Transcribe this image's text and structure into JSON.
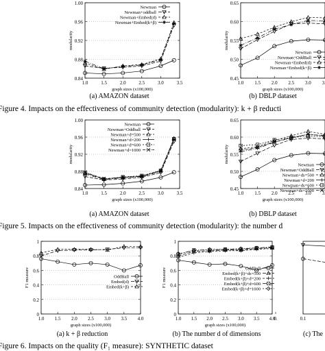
{
  "figure4": {
    "caption": "Figure 4.   Impacts on the effectiveness of community detection (modularity): k + β reducti",
    "subcaption_a": "(a)  AMAZON dataset",
    "subcaption_b": "(b)  DBLP dataset"
  },
  "figure5": {
    "caption": "Figure 5.   Impacts on the effectiveness of community detection (modularity): the number d",
    "subcaption_a": "(a)  AMAZON dataset",
    "subcaption_b": "(b)  DBLP dataset"
  },
  "figure6": {
    "caption": "Figure 6.   Impacts on the quality (F₁ measure): SYNTHETIC dataset",
    "subcaption_a": "(a)   k + β reduction",
    "subcaption_b": "(b)  The number d of dimensions",
    "subcaption_c": "(c)  The"
  },
  "chart_data": [
    {
      "id": "fig4a",
      "type": "line",
      "xlabel": "graph sizes (x100,000)",
      "ylabel": "modularity",
      "xlim": [
        1.0,
        3.5
      ],
      "ylim": [
        0.84,
        1.0
      ],
      "xticks": [
        "1.0",
        "1.5",
        "2.0",
        "2.5",
        "3.0",
        "3.5"
      ],
      "yticks": [
        "0.84",
        "0.88",
        "0.92",
        "0.96",
        "1.00"
      ],
      "legend_position": "top-right",
      "series": [
        {
          "name": "Newman",
          "marker": "circle",
          "x": [
            1.0,
            1.5,
            2.0,
            2.5,
            3.0,
            3.35
          ],
          "values": [
            0.851,
            0.849,
            0.851,
            0.855,
            0.866,
            0.878
          ]
        },
        {
          "name": "Newman+oddball",
          "marker": "triangle-down",
          "x": [
            1.0,
            1.5,
            2.0,
            2.5,
            3.0,
            3.35
          ],
          "values": [
            0.866,
            0.861,
            0.863,
            0.866,
            0.876,
            0.952
          ]
        },
        {
          "name": "Newman+Embed(d)",
          "marker": "triangle",
          "x": [
            1.0,
            1.5,
            2.0,
            2.5,
            3.0,
            3.35
          ],
          "values": [
            0.872,
            0.859,
            0.866,
            0.869,
            0.881,
            0.958
          ]
        },
        {
          "name": "Newman+Embed(k+β)",
          "marker": "star",
          "x": [
            1.0,
            1.5,
            2.0,
            2.5,
            3.0,
            3.35
          ],
          "values": [
            0.876,
            0.86,
            0.865,
            0.868,
            0.879,
            0.956
          ]
        }
      ]
    },
    {
      "id": "fig4b",
      "type": "line",
      "xlabel": "graph sizes (x100,000)",
      "ylabel": "modularity",
      "xlim": [
        1.0,
        3.5
      ],
      "ylim": [
        0.45,
        0.65
      ],
      "xticks": [
        "1.0",
        "1.5",
        "2.0",
        "2.5",
        "3.0",
        "3.5"
      ],
      "yticks": [
        "0.45",
        "0.50",
        "0.55",
        "0.60",
        "0.65"
      ],
      "legend_position": "bottom-right",
      "series": [
        {
          "name": "Newman",
          "marker": "circle",
          "x": [
            1.0,
            1.5,
            2.0,
            2.5,
            3.0,
            3.5
          ],
          "values": [
            0.484,
            0.504,
            0.535,
            0.548,
            0.552,
            0.551
          ]
        },
        {
          "name": "Newman+OddBall",
          "marker": "triangle-down",
          "x": [
            1.0,
            1.5,
            2.0,
            2.5,
            3.0,
            3.5
          ],
          "values": [
            0.528,
            0.552,
            0.574,
            0.594,
            0.596,
            0.594
          ]
        },
        {
          "name": "Newman+Embed(d)",
          "marker": "triangle",
          "x": [
            1.0,
            1.5,
            2.0,
            2.5,
            3.0,
            3.5
          ],
          "values": [
            0.555,
            0.567,
            0.585,
            0.6,
            0.611,
            0.61
          ]
        },
        {
          "name": "Newman+Embed(k+β)",
          "marker": "star",
          "x": [
            1.0,
            1.5,
            2.0,
            2.5,
            3.0,
            3.5
          ],
          "values": [
            0.537,
            0.557,
            0.58,
            0.592,
            0.603,
            0.602
          ]
        }
      ]
    },
    {
      "id": "fig5a",
      "type": "line",
      "xlabel": "graph sizes (x100,000)",
      "ylabel": "modularity",
      "xlim": [
        1.0,
        3.5
      ],
      "ylim": [
        0.84,
        1.0
      ],
      "xticks": [
        "1.0",
        "1.5",
        "2.0",
        "2.5",
        "3.0",
        "3.5"
      ],
      "yticks": [
        "0.84",
        "0.88",
        "0.92",
        "0.96",
        "1.00"
      ],
      "legend_position": "top-left",
      "series": [
        {
          "name": "Newman",
          "marker": "circle",
          "x": [
            1.0,
            1.5,
            2.0,
            2.5,
            3.0,
            3.35
          ],
          "values": [
            0.848,
            0.849,
            0.852,
            0.857,
            0.866,
            0.878
          ]
        },
        {
          "name": "Newman+Oddball",
          "marker": "triangle-down",
          "x": [
            1.0,
            1.5,
            2.0,
            2.5,
            3.0,
            3.35
          ],
          "values": [
            0.868,
            0.86,
            0.862,
            0.866,
            0.877,
            0.95
          ]
        },
        {
          "name": "Newman+d=500",
          "marker": "triangle",
          "x": [
            1.0,
            1.5,
            2.0,
            2.5,
            3.0,
            3.35
          ],
          "values": [
            0.876,
            0.862,
            0.866,
            0.869,
            0.882,
            0.957
          ]
        },
        {
          "name": "Newman+d=200",
          "marker": "plus",
          "x": [
            1.0,
            1.5,
            2.0,
            2.5,
            3.0,
            3.35
          ],
          "values": [
            0.874,
            0.861,
            0.865,
            0.868,
            0.88,
            0.955
          ]
        },
        {
          "name": "Newman+d=600",
          "marker": "square",
          "x": [
            1.0,
            1.5,
            2.0,
            2.5,
            3.0,
            3.35
          ],
          "values": [
            0.877,
            0.862,
            0.867,
            0.87,
            0.882,
            0.956
          ]
        },
        {
          "name": "Newman+d=1000",
          "marker": "cross",
          "x": [
            1.0,
            1.5,
            2.0,
            2.5,
            3.0,
            3.35
          ],
          "values": [
            0.878,
            0.863,
            0.866,
            0.869,
            0.881,
            0.954
          ]
        }
      ]
    },
    {
      "id": "fig5b",
      "type": "line",
      "xlabel": "graph sizes (x100,000)",
      "ylabel": "modularity",
      "xlim": [
        1.0,
        3.5
      ],
      "ylim": [
        0.45,
        0.65
      ],
      "xticks": [
        "1.0",
        "1.5",
        "2.0",
        "2.5",
        "3.0",
        "3.5"
      ],
      "yticks": [
        "0.45",
        "0.50",
        "0.55",
        "0.60",
        "0.65"
      ],
      "legend_position": "bottom-right",
      "series": [
        {
          "name": "Newman",
          "marker": "circle",
          "x": [
            1.0,
            1.5,
            2.0,
            2.5,
            3.0,
            3.5
          ],
          "values": [
            0.484,
            0.506,
            0.533,
            0.547,
            0.553,
            0.552
          ]
        },
        {
          "name": "Newman+OddBall",
          "marker": "triangle-down",
          "x": [
            1.0,
            1.5,
            2.0,
            2.5,
            3.0,
            3.5
          ],
          "values": [
            0.529,
            0.553,
            0.576,
            0.593,
            0.597,
            0.595
          ]
        },
        {
          "name": "Newman+ds=500",
          "marker": "triangle",
          "x": [
            1.0,
            1.5,
            2.0,
            2.5,
            3.0,
            3.5
          ],
          "values": [
            0.566,
            0.572,
            0.59,
            0.604,
            0.617,
            0.608
          ]
        },
        {
          "name": "Newman+d=200",
          "marker": "plus",
          "x": [
            1.0,
            1.5,
            2.0,
            2.5,
            3.0,
            3.5
          ],
          "values": [
            0.557,
            0.567,
            0.585,
            0.6,
            0.607,
            0.605
          ]
        },
        {
          "name": "Newman+ds=600",
          "marker": "square",
          "x": [
            1.0,
            1.5,
            2.0,
            2.5,
            3.0,
            3.5
          ],
          "values": [
            0.575,
            0.578,
            0.592,
            0.598,
            0.604,
            0.601
          ]
        },
        {
          "name": "Newman+ds=1000",
          "marker": "cross",
          "x": [
            1.0,
            1.5,
            2.0,
            2.5,
            3.0,
            3.5
          ],
          "values": [
            0.561,
            0.57,
            0.586,
            0.597,
            0.609,
            0.603
          ]
        }
      ]
    },
    {
      "id": "fig6a",
      "type": "line",
      "xlabel": "graph sizes (x100,000)",
      "ylabel": "F1 measure",
      "xlim": [
        1.0,
        4.0
      ],
      "ylim": [
        0,
        1
      ],
      "xticks": [
        "1.0",
        "1.5",
        "2.0",
        "2.5",
        "3.0",
        "3.5",
        "4.0"
      ],
      "yticks": [
        "0",
        "0.2",
        "0.4",
        "0.6",
        "0.8",
        "1"
      ],
      "legend_position": "bottom-right",
      "series": [
        {
          "name": "OddBall",
          "marker": "circle",
          "x": [
            1.0,
            1.5,
            2.0,
            2.5,
            3.0,
            3.5,
            4.0
          ],
          "values": [
            0.76,
            0.72,
            0.68,
            0.7,
            0.68,
            0.6,
            0.67
          ]
        },
        {
          "name": "Embed(d)",
          "marker": "triangle-down",
          "x": [
            1.0,
            1.5,
            2.0,
            2.5,
            3.0,
            3.5,
            4.0
          ],
          "values": [
            0.8,
            0.87,
            0.88,
            0.88,
            0.89,
            0.91,
            0.91
          ]
        },
        {
          "name": "Embed(k+β)",
          "marker": "triangle",
          "x": [
            1.0,
            1.5,
            2.0,
            2.5,
            3.0,
            3.5,
            4.0
          ],
          "values": [
            0.84,
            0.89,
            0.89,
            0.89,
            0.88,
            0.93,
            0.93
          ]
        }
      ]
    },
    {
      "id": "fig6b",
      "type": "line",
      "xlabel": "graph sizes (x100,000)",
      "ylabel": "F1 measure",
      "xlim": [
        1.0,
        4.0
      ],
      "ylim": [
        0,
        1
      ],
      "xticks": [
        "1.0",
        "1.5",
        "2.0",
        "2.5",
        "3.0",
        "3.5",
        "4.0"
      ],
      "yticks": [
        "0",
        "0.2",
        "0.4",
        "0.6",
        "0.8",
        "1"
      ],
      "legend_position": "bottom-right",
      "series": [
        {
          "name": "OddBall",
          "marker": "circle",
          "x": [
            1.0,
            1.5,
            2.0,
            2.5,
            3.0,
            3.5,
            4.0
          ],
          "values": [
            0.74,
            0.71,
            0.68,
            0.69,
            0.66,
            0.6,
            0.67
          ]
        },
        {
          "name": "Embed(k+β)+ds=500",
          "marker": "triangle",
          "x": [
            1.0,
            1.5,
            2.0,
            2.5,
            3.0,
            3.5,
            4.0
          ],
          "values": [
            0.8,
            0.86,
            0.87,
            0.88,
            0.88,
            0.9,
            0.91
          ]
        },
        {
          "name": "Embed(k+β)+d=200",
          "marker": "plus",
          "x": [
            1.0,
            1.5,
            2.0,
            2.5,
            3.0,
            3.5,
            4.0
          ],
          "values": [
            0.78,
            0.84,
            0.86,
            0.87,
            0.87,
            0.89,
            0.9
          ]
        },
        {
          "name": "Embed(k+β)+d=600",
          "marker": "square",
          "x": [
            1.0,
            1.5,
            2.0,
            2.5,
            3.0,
            3.5,
            4.0
          ],
          "values": [
            0.82,
            0.88,
            0.88,
            0.89,
            0.89,
            0.91,
            0.92
          ]
        },
        {
          "name": "Embed(k+β)+d=1000",
          "marker": "diamond",
          "x": [
            1.0,
            1.5,
            2.0,
            2.5,
            3.0,
            3.5,
            4.0
          ],
          "values": [
            0.83,
            0.87,
            0.89,
            0.89,
            0.9,
            0.91,
            0.92
          ]
        }
      ]
    },
    {
      "id": "fig6c",
      "type": "line",
      "xlabel": "",
      "ylabel": "",
      "xlim": [
        0.1,
        0.2
      ],
      "ylim": [
        0,
        1
      ],
      "xticks": [
        "0.1",
        "0."
      ],
      "yticks": [],
      "series": [
        {
          "name": "",
          "marker": "triangle-down",
          "x": [
            0.1,
            0.2
          ],
          "values": [
            0.95,
            0.93
          ]
        },
        {
          "name": "",
          "marker": "circle",
          "x": [
            0.1,
            0.2
          ],
          "values": [
            0.76,
            0.7
          ]
        }
      ]
    }
  ]
}
